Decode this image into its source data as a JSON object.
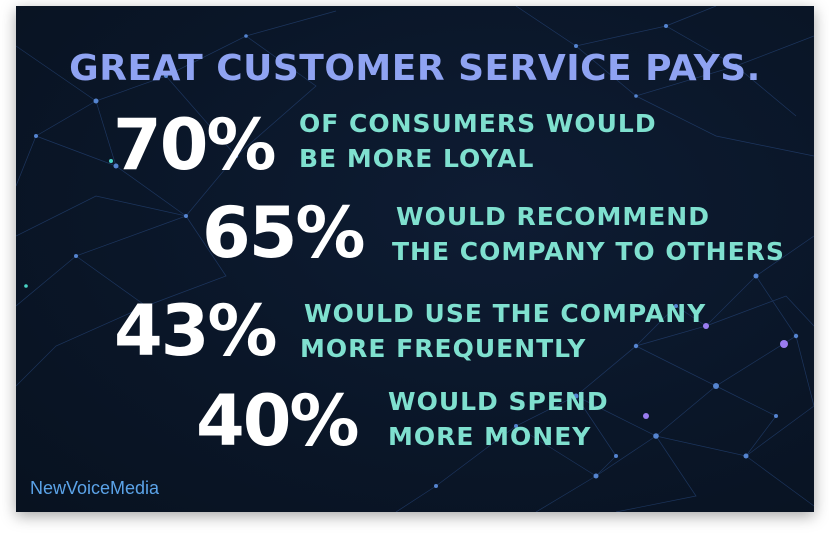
{
  "headline": "GREAT CUSTOMER SERVICE PAYS.",
  "stats": [
    {
      "value": "70%",
      "line1": "OF CONSUMERS WOULD",
      "line2": "BE MORE LOYAL"
    },
    {
      "value": "65%",
      "line1": "WOULD RECOMMEND",
      "line2": "THE COMPANY TO OTHERS"
    },
    {
      "value": "43%",
      "line1": "WOULD USE THE COMPANY",
      "line2": "MORE FREQUENTLY"
    },
    {
      "value": "40%",
      "line1": "WOULD SPEND",
      "line2": "MORE MONEY"
    }
  ],
  "brand": "NewVoiceMedia",
  "colors": {
    "background": "#0a1628",
    "headline": "#8fa3f2",
    "percent": "#ffffff",
    "description": "#7fe0cf",
    "brand": "#5ba3e8"
  }
}
